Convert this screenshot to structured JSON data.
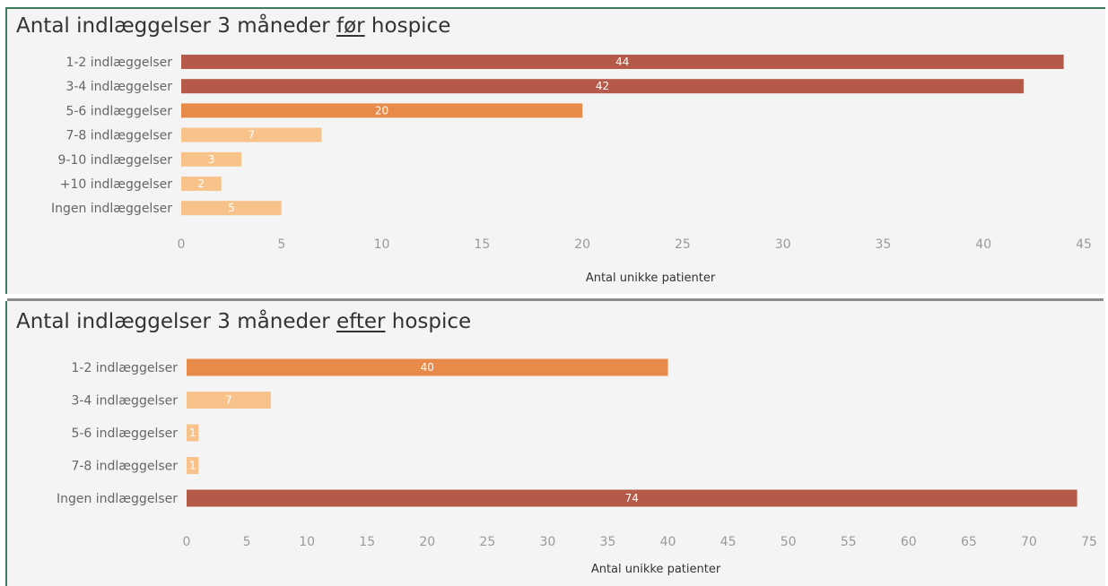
{
  "colors": {
    "dark": "#b55a48",
    "mid": "#e88b4a",
    "light": "#f7c38b",
    "panel_bg": "#f4f4f4",
    "border": "#3d7a5e"
  },
  "chart_data": [
    {
      "type": "bar",
      "orientation": "horizontal",
      "title_pre": "Antal indlæggelser 3 måneder ",
      "title_em": "før",
      "title_post": " hospice",
      "categories": [
        "1-2 indlæggelser",
        "3-4 indlæggelser",
        "5-6 indlæggelser",
        "7-8 indlæggelser",
        "9-10 indlæggelser",
        "+10 indlæggelser",
        "Ingen indlæggelser"
      ],
      "values": [
        44,
        42,
        20,
        7,
        3,
        2,
        5
      ],
      "bar_colors": [
        "#b55a48",
        "#b55a48",
        "#e88b4a",
        "#f7c38b",
        "#f7c38b",
        "#f7c38b",
        "#f7c38b"
      ],
      "xlabel": "Antal unikke patienter",
      "xlim": [
        0,
        45
      ],
      "xticks": [
        0,
        5,
        10,
        15,
        20,
        25,
        30,
        35,
        40,
        45
      ],
      "grid": false
    },
    {
      "type": "bar",
      "orientation": "horizontal",
      "title_pre": "Antal indlæggelser 3 måneder ",
      "title_em": "efter",
      "title_post": " hospice",
      "categories": [
        "1-2 indlæggelser",
        "3-4 indlæggelser",
        "5-6 indlæggelser",
        "7-8 indlæggelser",
        "Ingen indlæggelser"
      ],
      "values": [
        40,
        7,
        1,
        1,
        74
      ],
      "bar_colors": [
        "#e88b4a",
        "#f7c38b",
        "#f7c38b",
        "#f7c38b",
        "#b55a48"
      ],
      "xlabel": "Antal unikke patienter",
      "xlim": [
        0,
        75
      ],
      "xticks": [
        0,
        5,
        10,
        15,
        20,
        25,
        30,
        35,
        40,
        45,
        50,
        55,
        60,
        65,
        70,
        75
      ],
      "grid": false
    }
  ]
}
